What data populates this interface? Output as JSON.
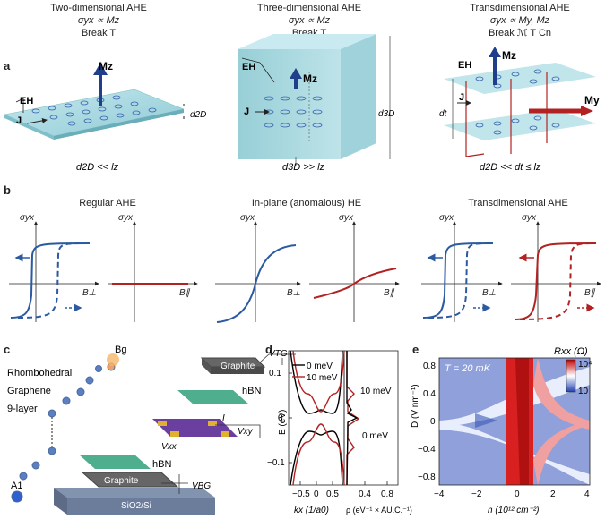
{
  "panel_labels": {
    "a": "a",
    "b": "b",
    "c": "c",
    "d": "d",
    "e": "e"
  },
  "panel_a": {
    "col1": {
      "title": "Two-dimensional AHE",
      "eq": "σyx ∝ Mz",
      "break": "Break T",
      "bottom": "d2D << lz",
      "eh": "EH",
      "j": "J",
      "m": "Mz",
      "d": "d2D"
    },
    "col2": {
      "title": "Three-dimensional AHE",
      "eq": "σyx ∝ Mz",
      "break": "Break T",
      "bottom": "d3D >> lz",
      "eh": "EH",
      "j": "J",
      "m": "Mz",
      "d": "d3D"
    },
    "col3": {
      "title": "Transdimensional AHE",
      "eq": "σyx ∝ My, Mz",
      "break": "Break ℳ T Cn",
      "bottom": "d2D << dt ≤ lz",
      "eh": "EH",
      "j": "J",
      "mz": "Mz",
      "my": "My",
      "dt": "dt"
    }
  },
  "panel_b": {
    "titles": [
      "Regular AHE",
      "In-plane (anomalous) HE",
      "Transdimensional AHE"
    ],
    "ylabel": "σyx",
    "xperp": "B⊥",
    "xpar": "B∥"
  },
  "panel_c": {
    "graphite_top": "Graphite",
    "hbn_top": "hBN",
    "vtg": "VTG",
    "bg": "Bg",
    "rhombo1": "Rhombohedral",
    "rhombo2": "Graphene",
    "rhombo3": "9-layer",
    "vxy": "Vxy",
    "vxx": "Vxx",
    "hbn_bot": "hBN",
    "a1": "A1",
    "graphite_bot": "Graphite",
    "sio2": "SiO2/Si",
    "vbg": "VBG",
    "i": "I"
  },
  "panel_d": {
    "legend": [
      {
        "name": "0 meV",
        "color": "#000000"
      },
      {
        "name": "10 meV",
        "color": "#b22222"
      }
    ],
    "ylabel": "E (eV)",
    "xlabel_left": "kx (1/a0)",
    "xlabel_right": "ρ (eV⁻¹ × AU.C.⁻¹)",
    "yticks": [
      "0.1",
      "0",
      "−0.1"
    ],
    "xticks_left": [
      "−0.5",
      "0",
      "0.5"
    ],
    "xticks_right": [
      "0.4",
      "0.8"
    ],
    "dos_labels": [
      "10 meV",
      "0 meV"
    ]
  },
  "panel_e": {
    "annotation": "T = 20 mK",
    "cbar_title": "Rxx (Ω)",
    "cbar_ticks": [
      "10⁴",
      "10"
    ],
    "ylabel": "D (V nm⁻¹)",
    "xlabel": "n (10¹² cm⁻²)",
    "yticks": [
      "0.8",
      "0.4",
      "0",
      "−0.4",
      "−0.8"
    ],
    "xticks": [
      "−4",
      "−2",
      "0",
      "2",
      "4"
    ]
  },
  "colors": {
    "blue": "#2c5aa0",
    "red": "#b22222",
    "slab": "#a8d8e0"
  }
}
